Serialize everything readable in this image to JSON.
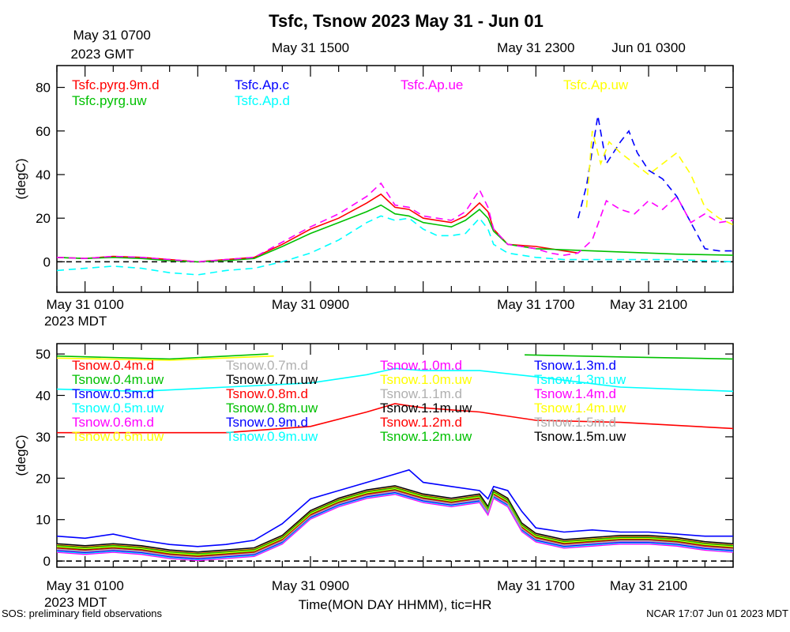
{
  "page": {
    "title": "Tsfc, Tsnow 2023 May 31 - Jun 01",
    "xlabel": "Time(MON DAY HHMM), tic=HR",
    "footer_left": "SOS: preliminary field observations",
    "footer_right": "NCAR 17:07 Jun 01 2023 MDT",
    "top_axis_tz": "2023 GMT",
    "bottom_axis_tz": "2023 MDT",
    "zero_line_style": "dashed"
  },
  "chart_data": [
    {
      "type": "line",
      "ylabel": "(degC)",
      "ylim": [
        -14,
        90
      ],
      "yticks": [
        0,
        20,
        40,
        60,
        80
      ],
      "x_unit": "hours since May 31 0000 MDT",
      "xlim": [
        0,
        24
      ],
      "top_ticklabels": [
        {
          "x": 1,
          "lines": [
            "May 31 0700",
            "2023 GMT"
          ]
        },
        {
          "x": 9,
          "lines": [
            "May 31 1500"
          ]
        },
        {
          "x": 17,
          "lines": [
            "May 31 2300"
          ]
        },
        {
          "x": 21,
          "lines": [
            "Jun 01 0300"
          ]
        }
      ],
      "bottom_ticklabels": [
        {
          "x": 1,
          "lines": [
            "May 31 0100",
            "2023 MDT"
          ]
        },
        {
          "x": 9,
          "lines": [
            "May 31 0900"
          ]
        },
        {
          "x": 17,
          "lines": [
            "May 31 1700"
          ]
        },
        {
          "x": 21,
          "lines": [
            "May 31 2100"
          ]
        }
      ],
      "series": [
        {
          "name": "Tsfc.pyrg.9m.d",
          "color": "#ff0000",
          "dash": false,
          "x": [
            0,
            1,
            2,
            3,
            4,
            5,
            6,
            7,
            8,
            9,
            10,
            11,
            11.5,
            12,
            12.5,
            13,
            13.5,
            14,
            14.5,
            15,
            15.3,
            15.5,
            16,
            17,
            18,
            18.5
          ],
          "y": [
            2,
            1.5,
            2.5,
            2,
            1,
            0,
            1,
            2,
            8,
            15,
            20,
            27,
            31,
            25,
            24,
            20,
            19,
            18,
            21,
            27,
            23,
            15,
            8,
            7,
            5,
            4
          ]
        },
        {
          "name": "Tsfc.pyrg.uw",
          "color": "#00c000",
          "dash": false,
          "x": [
            0,
            1,
            2,
            3,
            4,
            5,
            6,
            7,
            8,
            9,
            10,
            11,
            11.5,
            12,
            12.5,
            13,
            13.5,
            14,
            14.5,
            15,
            15.3,
            15.5,
            16,
            17,
            18,
            19,
            20,
            22,
            24
          ],
          "y": [
            2,
            1.5,
            2,
            1.5,
            0.5,
            0,
            0.5,
            1.5,
            7,
            13,
            18,
            23,
            26,
            22,
            21,
            18,
            17,
            16,
            19,
            24,
            20,
            14,
            8,
            6,
            5.5,
            5,
            4.5,
            3.5,
            3
          ]
        },
        {
          "name": "Tsfc.Ap.c",
          "color": "#0000ff",
          "dash": true,
          "x": [
            18.5,
            18.8,
            19.2,
            19.5,
            20,
            20.3,
            20.6,
            21,
            21.5,
            22,
            22.5,
            23,
            23.5,
            24
          ],
          "y": [
            20,
            35,
            67,
            45,
            55,
            60,
            50,
            42,
            38,
            30,
            18,
            6,
            5,
            5
          ]
        },
        {
          "name": "Tsfc.Ap.d",
          "color": "#00ffff",
          "dash": true,
          "x": [
            0,
            1,
            2,
            3,
            4,
            5,
            6,
            7,
            8,
            9,
            10,
            11,
            11.5,
            12,
            12.5,
            13,
            13.5,
            14,
            14.5,
            15,
            15.3,
            15.5,
            16,
            17,
            18,
            19,
            20,
            22,
            24
          ],
          "y": [
            -4,
            -3,
            -2,
            -3,
            -5,
            -6,
            -4,
            -3,
            0,
            4,
            10,
            18,
            21,
            19,
            20,
            15,
            12,
            12,
            13,
            20,
            15,
            8,
            4,
            2,
            1,
            1,
            1,
            1,
            0
          ]
        },
        {
          "name": "Tsfc.Ap.ue",
          "color": "#ff00ff",
          "dash": true,
          "x": [
            0,
            1,
            2,
            3,
            4,
            5,
            6,
            7,
            8,
            9,
            10,
            11,
            11.5,
            12,
            12.5,
            13,
            13.5,
            14,
            14.5,
            15,
            15.3,
            15.5,
            16,
            17,
            17.5,
            18,
            18.5,
            19,
            19.5,
            20,
            20.5,
            21,
            21.5,
            22,
            22.5,
            23,
            23.5,
            24
          ],
          "y": [
            2,
            1.5,
            2.5,
            2,
            1,
            0,
            1,
            2,
            9,
            16,
            22,
            30,
            36,
            26,
            25,
            21,
            20,
            19,
            23,
            33,
            25,
            15,
            8,
            6,
            4,
            3,
            4,
            10,
            28,
            24,
            22,
            28,
            24,
            30,
            18,
            22,
            18,
            19
          ]
        },
        {
          "name": "Tsfc.Ap.uw",
          "color": "#ffff00",
          "dash": true,
          "x": [
            18.8,
            19,
            19.3,
            19.6,
            20,
            20.5,
            21,
            21.5,
            22,
            22.5,
            23,
            23.5,
            24
          ],
          "y": [
            25,
            60,
            45,
            55,
            50,
            45,
            40,
            45,
            50,
            40,
            25,
            20,
            17
          ]
        }
      ]
    },
    {
      "type": "line",
      "ylabel": "(degC)",
      "ylim": [
        -1.5,
        52.5
      ],
      "yticks": [
        0,
        10,
        20,
        30,
        40,
        50
      ],
      "x_unit": "hours since May 31 0000 MDT",
      "xlim": [
        0,
        24
      ],
      "bottom_ticklabels": [
        {
          "x": 1,
          "lines": [
            "May 31 0100",
            "2023 MDT"
          ]
        },
        {
          "x": 9,
          "lines": [
            "May 31 0900"
          ]
        },
        {
          "x": 17,
          "lines": [
            "May 31 1700"
          ]
        },
        {
          "x": 21,
          "lines": [
            "May 31 2100"
          ]
        }
      ],
      "series": [
        {
          "name": "Tsnow.0.4m.d",
          "color": "#ff0000",
          "x": [
            0,
            24
          ],
          "y": [
            0,
            0
          ],
          "offset": 0.6
        },
        {
          "name": "Tsnow.0.4m.uw",
          "color": "#00c000",
          "x": [
            0,
            24
          ],
          "y": [
            0,
            0
          ],
          "offset": 0.6
        },
        {
          "name": "Tsnow.0.5m.d",
          "color": "#0000ff",
          "x": [
            0,
            24
          ],
          "y": [
            0,
            0
          ],
          "offset": 1.0
        },
        {
          "name": "Tsnow.0.5m.uw",
          "color": "#00ffff",
          "x": [
            0,
            24
          ],
          "y": [
            0,
            0
          ],
          "offset": 0.0
        },
        {
          "name": "Tsnow.0.6m.d",
          "color": "#ff00ff",
          "x": [
            0,
            24
          ],
          "y": [
            0,
            0
          ],
          "offset": -0.3
        },
        {
          "name": "Tsnow.0.6m.uw",
          "color": "#ffff00",
          "x": [
            0,
            24
          ],
          "y": [
            0,
            0
          ],
          "offset": 0.9
        },
        {
          "name": "Tsnow.0.7m.d",
          "color": "#b0b0b0",
          "x": [
            0,
            24
          ],
          "y": [
            0,
            0
          ],
          "offset": 0.2
        },
        {
          "name": "Tsnow.0.7m.uw",
          "color": "#000000",
          "x": [
            0,
            24
          ],
          "y": [
            0,
            0
          ],
          "offset": 0.3
        },
        {
          "name": "Tsnow.0.8m.d",
          "color": "#ff0000",
          "x": [
            0,
            24
          ],
          "y": [
            0,
            0
          ],
          "offset": 0.1
        },
        {
          "name": "Tsnow.0.8m.uw",
          "color": "#00c000",
          "x": [
            0,
            24
          ],
          "y": [
            0,
            0
          ],
          "offset": 0.4
        },
        {
          "name": "Tsnow.0.9m.d",
          "color": "#0000ff",
          "x": [
            0,
            24
          ],
          "y": [
            0,
            0
          ],
          "offset": -0.5
        },
        {
          "name": "Tsnow.0.9m.uw",
          "color": "#00ffff",
          "x": [
            0,
            24
          ],
          "y": [
            0,
            0
          ],
          "offset": -0.7
        },
        {
          "name": "Tsnow.1.0m.d",
          "color": "#ff00ff",
          "x": [
            0,
            24
          ],
          "y": [
            0,
            0
          ],
          "offset": -0.9
        },
        {
          "name": "Tsnow.1.0m.uw",
          "color": "#ffff00",
          "x": [
            0,
            24
          ],
          "y": [
            0,
            0
          ],
          "offset": 0.5
        },
        {
          "name": "Tsnow.1.1m.d",
          "color": "#b0b0b0",
          "x": [
            0,
            24
          ],
          "y": [
            0,
            0
          ],
          "offset": -0.2
        },
        {
          "name": "Tsnow.1.1m.uw",
          "color": "#000000",
          "x": [
            0,
            24
          ],
          "y": [
            0,
            0
          ],
          "offset": 1.2
        },
        {
          "name": "Tsnow.1.2m.d",
          "color": "#ff0000",
          "x": [
            0,
            24
          ],
          "y": [
            0,
            0
          ],
          "offset": 0.8
        },
        {
          "name": "Tsnow.1.2m.uw",
          "color": "#00c000",
          "x": [
            0,
            24
          ],
          "y": [
            0,
            0
          ],
          "offset": 0.7
        },
        {
          "name": "Tsnow.1.3m.d",
          "color": "#0000ff",
          "x": [
            0,
            24
          ],
          "y": [
            0,
            0
          ],
          "offset": 0
        },
        {
          "name": "Tsnow.1.3m.uw",
          "color": "#00ffff",
          "x": [
            0,
            24
          ],
          "y": [
            0,
            0
          ],
          "offset": 0
        },
        {
          "name": "Tsnow.1.4m.d",
          "color": "#ff00ff",
          "x": [
            0,
            24
          ],
          "y": [
            0,
            0
          ],
          "offset": 0
        },
        {
          "name": "Tsnow.1.4m.uw",
          "color": "#ffff00",
          "x": [
            0,
            24
          ],
          "y": [
            0,
            0
          ],
          "offset": 0
        },
        {
          "name": "Tsnow.1.5m.d",
          "color": "#b0b0b0",
          "x": [
            0,
            24
          ],
          "y": [
            0,
            0
          ],
          "offset": 0
        },
        {
          "name": "Tsnow.1.5m.uw",
          "color": "#000000",
          "x": [
            0,
            24
          ],
          "y": [
            0,
            0
          ],
          "offset": 0
        }
      ],
      "base_profile": {
        "x": [
          0,
          1,
          2,
          3,
          4,
          5,
          6,
          7,
          8,
          9,
          10,
          11,
          12,
          12.5,
          13,
          14,
          15,
          15.3,
          15.5,
          16,
          16.5,
          17,
          18,
          19,
          20,
          21,
          22,
          23,
          24
        ],
        "y": [
          3,
          2.5,
          3,
          2.5,
          1.5,
          1,
          1.5,
          2,
          5,
          11,
          14,
          16,
          17,
          16,
          15,
          14,
          15,
          12,
          16,
          14,
          8,
          5.5,
          4,
          4.5,
          5,
          5,
          4.5,
          3.5,
          3
        ]
      },
      "upper_traces": [
        {
          "label_ref": "Tsnow.1.3m.d",
          "color": "#0000ff",
          "x": [
            0,
            1,
            2,
            3,
            4,
            5,
            6,
            7,
            8,
            9,
            10,
            11,
            12,
            12.5,
            13,
            14,
            15,
            15.3,
            15.5,
            16,
            16.5,
            17,
            18,
            19,
            20,
            21,
            22,
            23,
            24
          ],
          "y": [
            6,
            5.5,
            6.5,
            5,
            4,
            3.5,
            4,
            5,
            9,
            15,
            17,
            19,
            21,
            22,
            19,
            18,
            17,
            15,
            18,
            17,
            12,
            8,
            7,
            7.5,
            7,
            7,
            6.5,
            6,
            6
          ]
        },
        {
          "label_ref": "Tsnow.0.4m.d",
          "color": "#ff0000",
          "x": [
            0,
            3,
            6,
            9,
            11,
            12,
            13,
            15,
            17,
            20,
            24
          ],
          "y": [
            31,
            31,
            31,
            32.5,
            36,
            38,
            37,
            36,
            34,
            33.5,
            32
          ]
        },
        {
          "label_ref": "Tsnow.1.3m.uw",
          "color": "#00ffff",
          "x": [
            0,
            3,
            6,
            9,
            11,
            12,
            13,
            15,
            17,
            20,
            24
          ],
          "y": [
            41.5,
            41,
            42,
            43,
            45,
            46.5,
            46,
            46,
            44.5,
            42,
            41
          ]
        },
        {
          "label_ref": "Tsnow.0.4m.uw",
          "color": "#00c000",
          "x": [
            0,
            4,
            7.5
          ],
          "y": [
            49.5,
            48.8,
            50
          ]
        },
        {
          "label_ref": "Tsnow.0.6m.uw",
          "color": "#ffff00",
          "x": [
            0,
            4,
            7.7
          ],
          "y": [
            49,
            48.5,
            49.5
          ]
        },
        {
          "label_ref": "Tsnow.1.2m.uw",
          "color": "#00c000",
          "x": [
            16.6,
            20,
            24
          ],
          "y": [
            49.8,
            49.3,
            48.8
          ]
        }
      ]
    }
  ]
}
